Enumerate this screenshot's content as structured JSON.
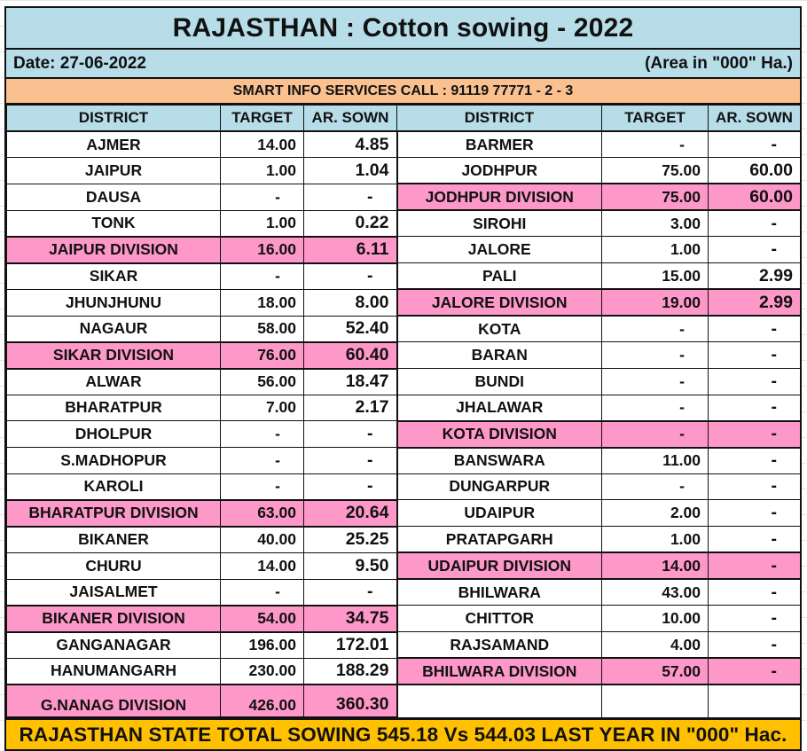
{
  "title": "RAJASTHAN : Cotton sowing - 2022",
  "date_label": "Date: 27-06-2022",
  "unit_label": "(Area in \"000\" Ha.)",
  "banner": "SMART INFO SERVICES CALL : 91119 77771 - 2 - 3",
  "headers": {
    "district": "DISTRICT",
    "target": "TARGET",
    "sown": "AR. SOWN"
  },
  "left": [
    {
      "district": "AJMER",
      "target": "14.00",
      "sown": "4.85",
      "division": false
    },
    {
      "district": "JAIPUR",
      "target": "1.00",
      "sown": "1.04",
      "division": false
    },
    {
      "district": "DAUSA",
      "target": "-",
      "sown": "-",
      "division": false
    },
    {
      "district": "TONK",
      "target": "1.00",
      "sown": "0.22",
      "division": false
    },
    {
      "district": "JAIPUR DIVISION",
      "target": "16.00",
      "sown": "6.11",
      "division": true
    },
    {
      "district": "SIKAR",
      "target": "-",
      "sown": "-",
      "division": false
    },
    {
      "district": "JHUNJHUNU",
      "target": "18.00",
      "sown": "8.00",
      "division": false
    },
    {
      "district": "NAGAUR",
      "target": "58.00",
      "sown": "52.40",
      "division": false
    },
    {
      "district": "SIKAR DIVISION",
      "target": "76.00",
      "sown": "60.40",
      "division": true
    },
    {
      "district": "ALWAR",
      "target": "56.00",
      "sown": "18.47",
      "division": false
    },
    {
      "district": "BHARATPUR",
      "target": "7.00",
      "sown": "2.17",
      "division": false
    },
    {
      "district": "DHOLPUR",
      "target": "-",
      "sown": "-",
      "division": false
    },
    {
      "district": "S.MADHOPUR",
      "target": "-",
      "sown": "-",
      "division": false
    },
    {
      "district": "KAROLI",
      "target": "-",
      "sown": "-",
      "division": false
    },
    {
      "district": "BHARATPUR DIVISION",
      "target": "63.00",
      "sown": "20.64",
      "division": true
    },
    {
      "district": "BIKANER",
      "target": "40.00",
      "sown": "25.25",
      "division": false
    },
    {
      "district": "CHURU",
      "target": "14.00",
      "sown": "9.50",
      "division": false
    },
    {
      "district": "JAISALMET",
      "target": "-",
      "sown": "-",
      "division": false
    },
    {
      "district": "BIKANER DIVISION",
      "target": "54.00",
      "sown": "34.75",
      "division": true
    },
    {
      "district": "GANGANAGAR",
      "target": "196.00",
      "sown": "172.01",
      "division": false
    },
    {
      "district": "HANUMANGARH",
      "target": "230.00",
      "sown": "188.29",
      "division": false
    },
    {
      "district": "G.NANAG DIVISION",
      "target": "426.00",
      "sown": "360.30",
      "division": true
    }
  ],
  "right": [
    {
      "district": "BARMER",
      "target": "-",
      "sown": "-",
      "division": false
    },
    {
      "district": "JODHPUR",
      "target": "75.00",
      "sown": "60.00",
      "division": false
    },
    {
      "district": "JODHPUR DIVISION",
      "target": "75.00",
      "sown": "60.00",
      "division": true
    },
    {
      "district": "SIROHI",
      "target": "3.00",
      "sown": "-",
      "division": false
    },
    {
      "district": "JALORE",
      "target": "1.00",
      "sown": "-",
      "division": false
    },
    {
      "district": "PALI",
      "target": "15.00",
      "sown": "2.99",
      "division": false
    },
    {
      "district": "JALORE DIVISION",
      "target": "19.00",
      "sown": "2.99",
      "division": true
    },
    {
      "district": "KOTA",
      "target": "-",
      "sown": "-",
      "division": false
    },
    {
      "district": "BARAN",
      "target": "-",
      "sown": "-",
      "division": false
    },
    {
      "district": "BUNDI",
      "target": "-",
      "sown": "-",
      "division": false
    },
    {
      "district": "JHALAWAR",
      "target": "-",
      "sown": "-",
      "division": false
    },
    {
      "district": "KOTA DIVISION",
      "target": "-",
      "sown": "-",
      "division": true
    },
    {
      "district": "BANSWARA",
      "target": "11.00",
      "sown": "-",
      "division": false
    },
    {
      "district": "DUNGARPUR",
      "target": "-",
      "sown": "-",
      "division": false
    },
    {
      "district": "UDAIPUR",
      "target": "2.00",
      "sown": "-",
      "division": false
    },
    {
      "district": "PRATAPGARH",
      "target": "1.00",
      "sown": "-",
      "division": false
    },
    {
      "district": "UDAIPUR DIVISION",
      "target": "14.00",
      "sown": "-",
      "division": true
    },
    {
      "district": "BHILWARA",
      "target": "43.00",
      "sown": "-",
      "division": false
    },
    {
      "district": "CHITTOR",
      "target": "10.00",
      "sown": "-",
      "division": false
    },
    {
      "district": "RAJSAMAND",
      "target": "4.00",
      "sown": "-",
      "division": false
    },
    {
      "district": "BHILWARA DIVISION",
      "target": "57.00",
      "sown": "-",
      "division": true
    },
    {
      "district": "",
      "target": "",
      "sown": "",
      "division": false
    }
  ],
  "total_text": "RAJASTHAN STATE TOTAL SOWING 545.18 Vs 544.03 LAST YEAR IN \"000\" Hac.",
  "colors": {
    "header_bg": "#b7dde8",
    "banner_bg": "#fac090",
    "division_bg": "#fe98c9",
    "total_bg": "#ffc000"
  }
}
